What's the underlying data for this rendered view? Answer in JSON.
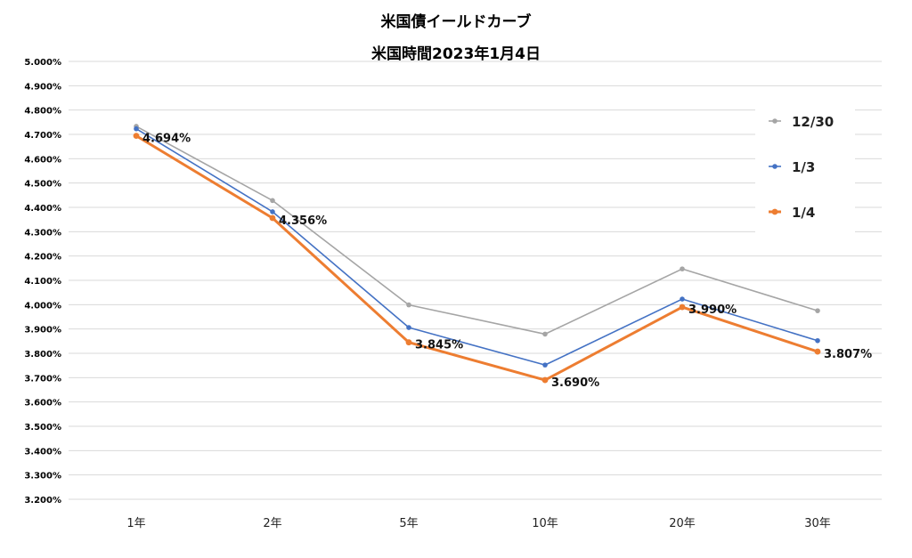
{
  "chart_data": {
    "type": "line",
    "title": "米国債イールドカーブ",
    "subtitle": "米国時間2023年1月4日",
    "categories": [
      "1年",
      "2年",
      "5年",
      "10年",
      "20年",
      "30年"
    ],
    "ylim": [
      3.2,
      5.0
    ],
    "ytick_step": 0.1,
    "ytick_decimals": 3,
    "value_suffix": "%",
    "grid": true,
    "legend_position": "right",
    "series": [
      {
        "name": "12/30",
        "color": "#a5a5a5",
        "values": [
          4.733,
          4.428,
          3.999,
          3.879,
          4.147,
          3.975
        ],
        "labels": false
      },
      {
        "name": "1/3",
        "color": "#4472c4",
        "values": [
          4.723,
          4.382,
          3.906,
          3.752,
          4.023,
          3.852
        ],
        "labels": false
      },
      {
        "name": "1/4",
        "color": "#ed7d31",
        "values": [
          4.694,
          4.356,
          3.845,
          3.69,
          3.99,
          3.807
        ],
        "labels": true,
        "data_labels": [
          "4.694%",
          "4.356%",
          "3.845%",
          "3.690%",
          "3.990%",
          "3.807%"
        ]
      }
    ]
  }
}
